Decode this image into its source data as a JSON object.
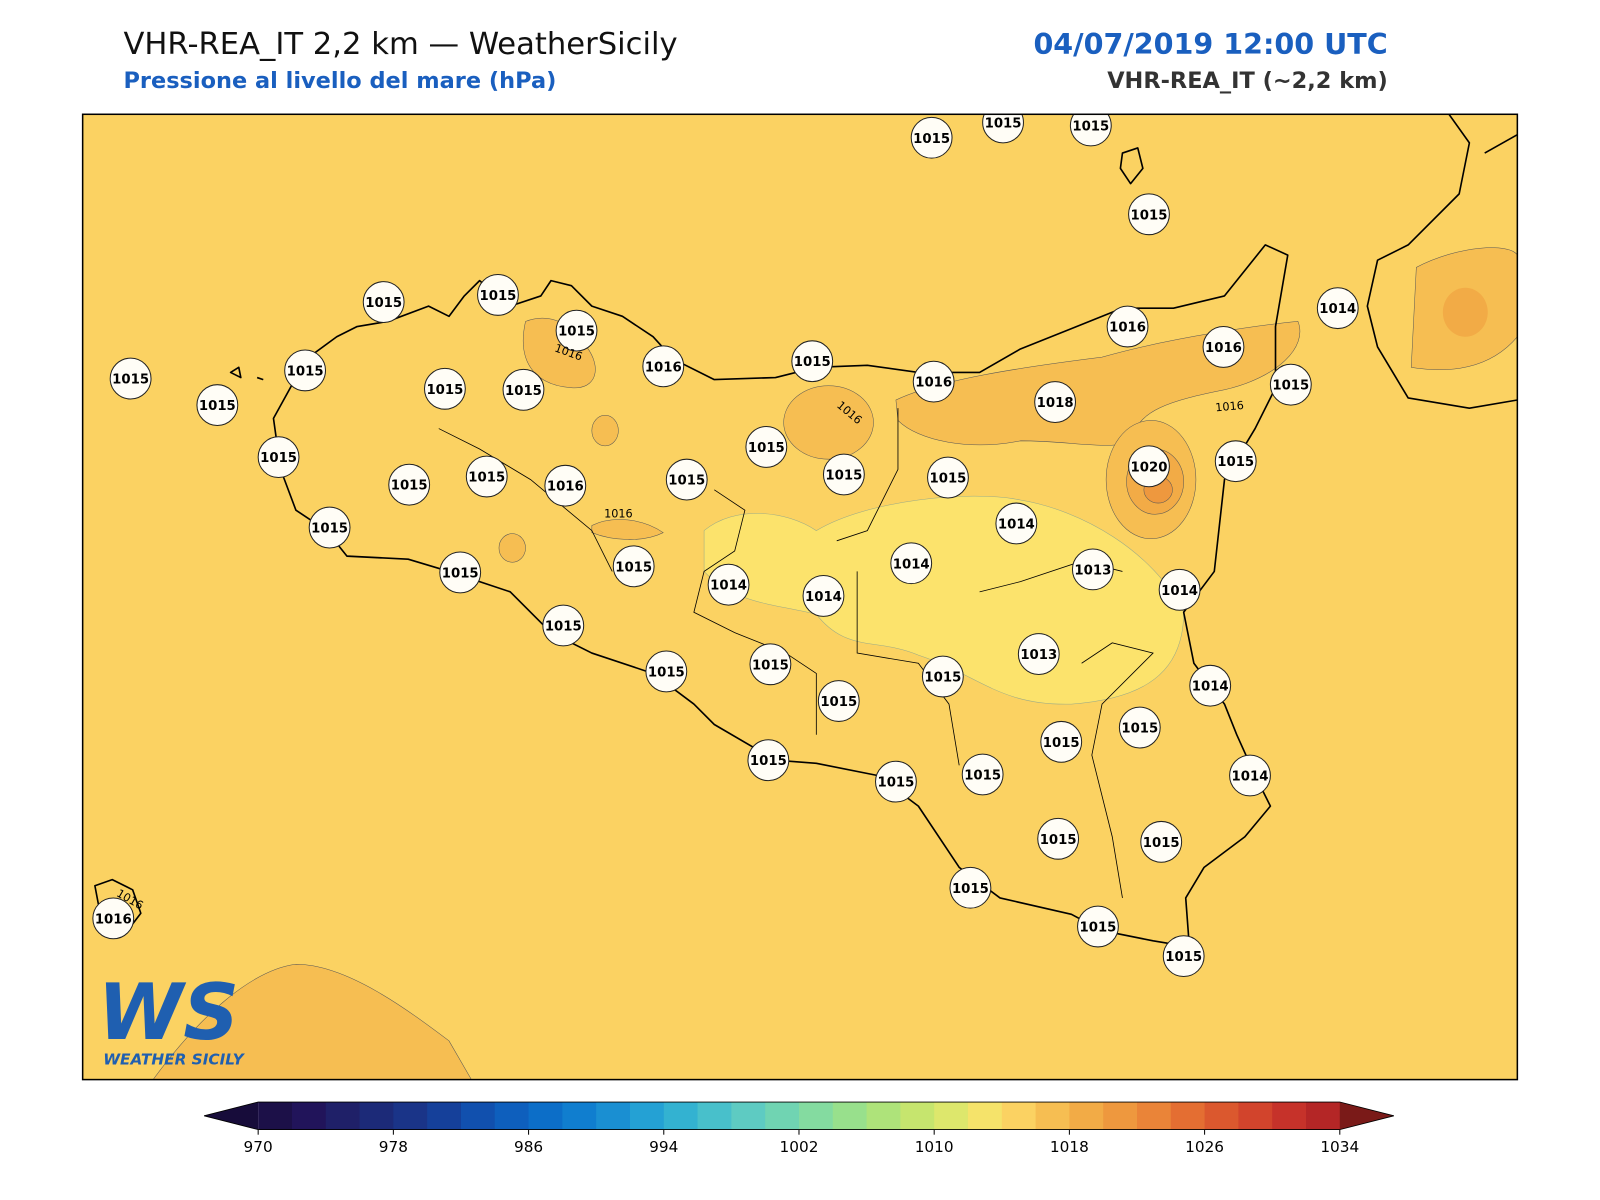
{
  "header": {
    "title": "VHR-REA_IT 2,2 km — WeatherSicily",
    "subtitle": "Pressione al livello del mare (hPa)",
    "date": "04/07/2019 12:00 UTC",
    "model": "VHR-REA_IT (~2,2 km)"
  },
  "stations": [
    1015,
    1015,
    1015,
    1015,
    1015,
    1015,
    1015,
    1016,
    1015,
    1016,
    1016,
    1014,
    1015,
    1015,
    1015,
    1015,
    1015,
    1016,
    1018,
    1015,
    1015,
    1015,
    1015,
    1020,
    1015,
    1015,
    1015,
    1015,
    1016,
    1015,
    1015,
    1014,
    1014,
    1013,
    1014,
    1015,
    1015,
    1014,
    1014,
    1015,
    1015,
    1015,
    1015,
    1015,
    1013,
    1014,
    1015,
    1015,
    1014,
    1015,
    1015,
    1015,
    1015,
    1015,
    1015,
    1015,
    1015,
    1016
  ],
  "contour_labels": [
    1016,
    1016,
    1016,
    1016,
    1016
  ],
  "logo": {
    "mark": "WS",
    "text": "WEATHER SICILY"
  },
  "colorbar": {
    "range": [
      970,
      1034
    ],
    "ticks": [
      970,
      978,
      986,
      994,
      1002,
      1010,
      1018,
      1026,
      1034
    ],
    "colors": [
      "#1c1048",
      "#21145a",
      "#1f2068",
      "#1c2a78",
      "#1a3488",
      "#15409a",
      "#1150ae",
      "#0e5fbd",
      "#0c6ec8",
      "#107ecf",
      "#1a8fd2",
      "#24a1d4",
      "#33b2d1",
      "#48c0cb",
      "#5ecbc2",
      "#70d4b2",
      "#84dba0",
      "#98e08c",
      "#aee37a",
      "#c6e56e",
      "#dde76c",
      "#f5e36a",
      "#fbd262",
      "#f6be52",
      "#f2ab46",
      "#ee983e",
      "#ea8438",
      "#e46e32",
      "#db582e",
      "#d2442c",
      "#c6322a",
      "#b42626"
    ],
    "under_color": "#170c3a",
    "over_color": "#7a1a18"
  }
}
